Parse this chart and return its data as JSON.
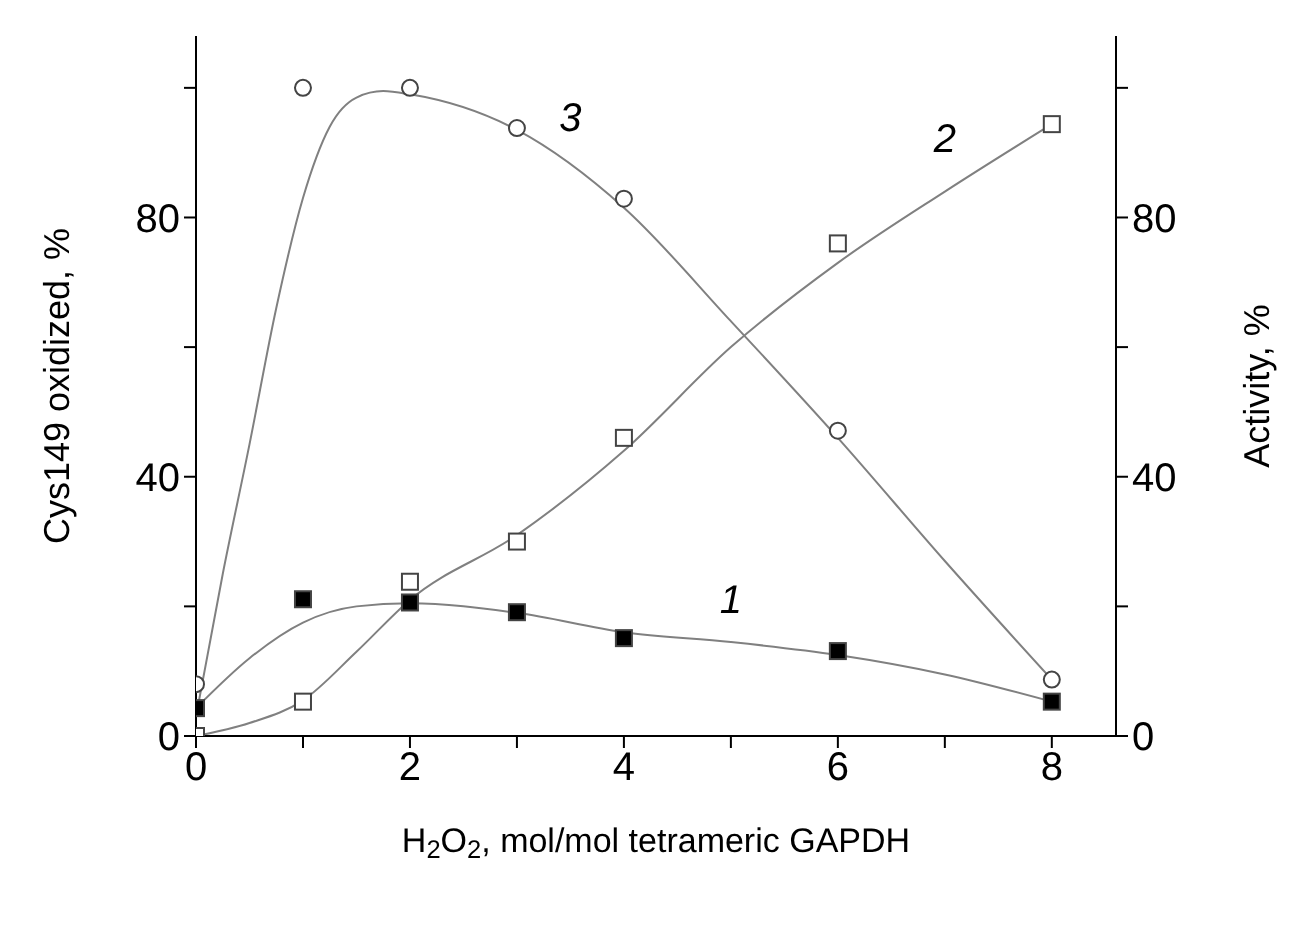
{
  "chart_data": {
    "type": "scatter",
    "xlabel": "H$_{2}$O$_{2}$, mol/mol tetrameric GAPDH",
    "ylabel": "Cys149 oxidized, %",
    "y2label": "Activity, %",
    "xlim": [
      0,
      8.6
    ],
    "xticks": [
      0,
      {
        "value": 1,
        "label": null
      },
      2,
      {
        "value": 3,
        "label": null
      },
      4,
      {
        "value": 5,
        "label": null
      },
      6,
      {
        "value": 7,
        "label": null
      },
      8
    ],
    "ylim": [
      0,
      108
    ],
    "yticks": [
      0,
      {
        "value": 20,
        "label": null
      },
      40,
      {
        "value": 60,
        "label": null
      },
      80,
      {
        "value": 100,
        "label": null
      }
    ],
    "y2lim": [
      0,
      108
    ],
    "y2ticks": [
      0,
      {
        "value": 20,
        "label": null
      },
      40,
      {
        "value": 60,
        "label": null
      },
      80,
      {
        "value": 100,
        "label": null
      }
    ],
    "x": [
      0,
      1,
      2,
      3,
      4,
      6,
      8
    ],
    "grid": false,
    "legend": false,
    "series": [
      {
        "name": "1",
        "marker": "square",
        "color": "#000000",
        "values": [
          4.3,
          21.1,
          20.6,
          19.1,
          15.1,
          13.1,
          5.3
        ]
      },
      {
        "name": "2",
        "marker": "square",
        "color": "#ffffff",
        "values": [
          0,
          5.3,
          23.8,
          30,
          46,
          76,
          94.4
        ]
      },
      {
        "name": "3",
        "marker": "circle",
        "color": "#ffffff",
        "values": [
          8,
          100,
          100,
          93.8,
          82.9,
          47.1,
          8.7
        ]
      },
      {
        "type": "line",
        "marker": "none",
        "color": "#808080",
        "x": [
          0,
          0.5,
          1,
          1.5,
          2,
          3,
          4,
          5,
          6,
          7,
          8
        ],
        "values": [
          4.3,
          12,
          17.5,
          20,
          20.5,
          19,
          16,
          14.5,
          12.5,
          9.5,
          5.3
        ]
      },
      {
        "type": "line",
        "marker": "none",
        "color": "#808080",
        "x": [
          0,
          0.5,
          1,
          1.5,
          2,
          3,
          4,
          5,
          6,
          7,
          8
        ],
        "values": [
          0,
          2,
          5.5,
          13,
          21,
          31,
          44,
          60,
          73,
          84,
          94.4
        ]
      },
      {
        "type": "line",
        "marker": "none",
        "color": "#808080",
        "x": [
          0,
          0.25,
          0.5,
          0.75,
          1,
          1.25,
          1.5,
          1.75,
          2,
          3,
          4,
          5,
          6,
          7,
          8
        ],
        "values": [
          3,
          25,
          45,
          66,
          83,
          94,
          98.5,
          99.5,
          99,
          93.5,
          81.5,
          64,
          46,
          27,
          8.7
        ]
      }
    ]
  }
}
